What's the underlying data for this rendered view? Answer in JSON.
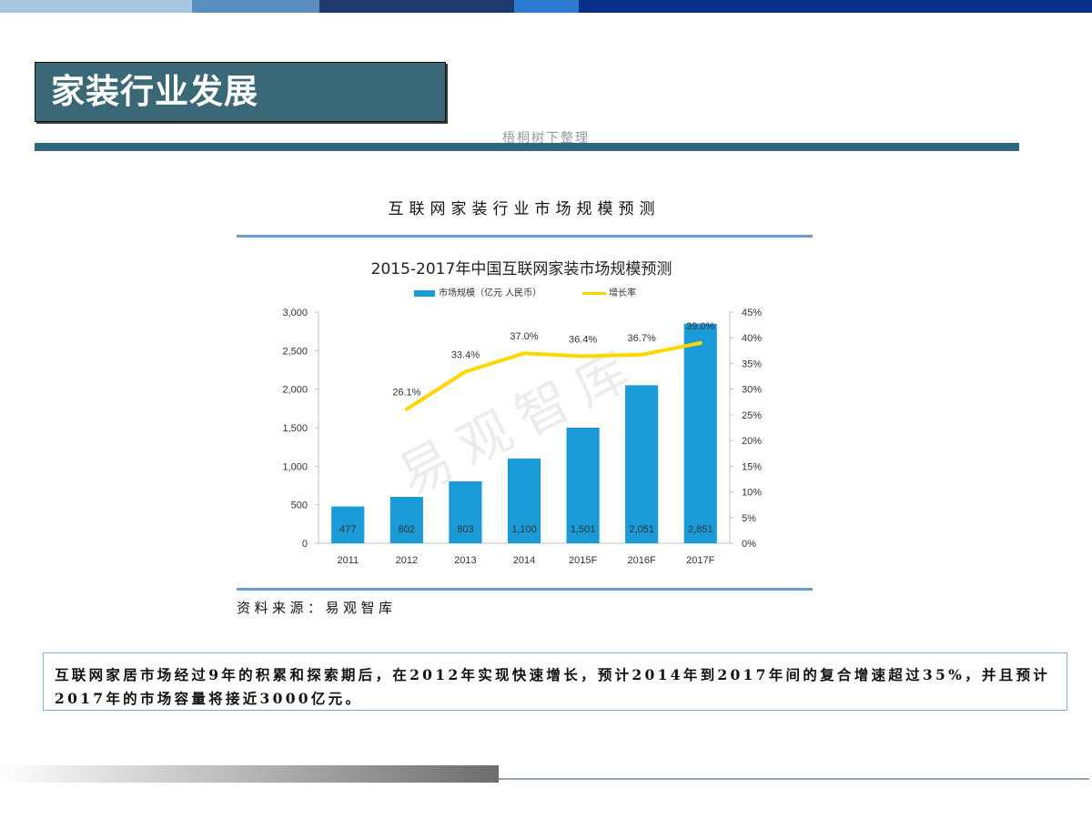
{
  "theme": {
    "top_bar_colors": [
      "#a8c6df",
      "#5b8ec0",
      "#1e3b6e",
      "#2c7bd1",
      "#0c2e8b"
    ],
    "title_box_color": "#3a6877",
    "title_rule_color": "#2f6781",
    "figure_rule_color": "#6a9fd6",
    "bottom_line_color": "#93a4aa"
  },
  "header": {
    "title": "家装行业发展",
    "credit": "梧桐树下整理"
  },
  "figure": {
    "heading": "互联网家装行业市场规模预测",
    "source": "资料来源：易观智库"
  },
  "chart_data": {
    "type": "bar",
    "title": "2015-2017年中国互联网家装市场规模预测",
    "categories": [
      "2011",
      "2012",
      "2013",
      "2014",
      "2015F",
      "2016F",
      "2017F"
    ],
    "series": [
      {
        "name": "市场规模（亿元 人民币）",
        "type": "bar",
        "axis": "left",
        "color": "#1b9ad8",
        "values": [
          477,
          602,
          803,
          1100,
          1501,
          2051,
          2851
        ],
        "labels": [
          "477",
          "602",
          "803",
          "1,100",
          "1,501",
          "2,051",
          "2,851"
        ]
      },
      {
        "name": "增长率",
        "type": "line",
        "axis": "right",
        "color": "#ffd700",
        "values": [
          null,
          26.1,
          33.4,
          37.0,
          36.4,
          36.7,
          39.0
        ],
        "labels": [
          null,
          "26.1%",
          "33.4%",
          "37.0%",
          "36.4%",
          "36.7%",
          "39.0%"
        ]
      }
    ],
    "y_left": {
      "lim": [
        0,
        3000
      ],
      "ticks": [
        0,
        500,
        1000,
        1500,
        2000,
        2500,
        3000
      ],
      "tick_labels": [
        "0",
        "500",
        "1,000",
        "1,500",
        "2,000",
        "2,500",
        "3,000"
      ]
    },
    "y_right": {
      "lim": [
        0,
        45
      ],
      "ticks": [
        0,
        5,
        10,
        15,
        20,
        25,
        30,
        35,
        40,
        45
      ],
      "tick_labels": [
        "0%",
        "5%",
        "10%",
        "15%",
        "20%",
        "25%",
        "30%",
        "35%",
        "40%",
        "45%"
      ]
    },
    "legend": "top",
    "grid": false,
    "watermark": "易观智库"
  },
  "note": {
    "lines": [
      "互联网家居市场经过9年的积累和探索期后，在2012年实现快速增长，预计2014年到2017年间的复合增速超过35%，并且预计",
      "2017年的市场容量将接近3000亿元。"
    ]
  }
}
